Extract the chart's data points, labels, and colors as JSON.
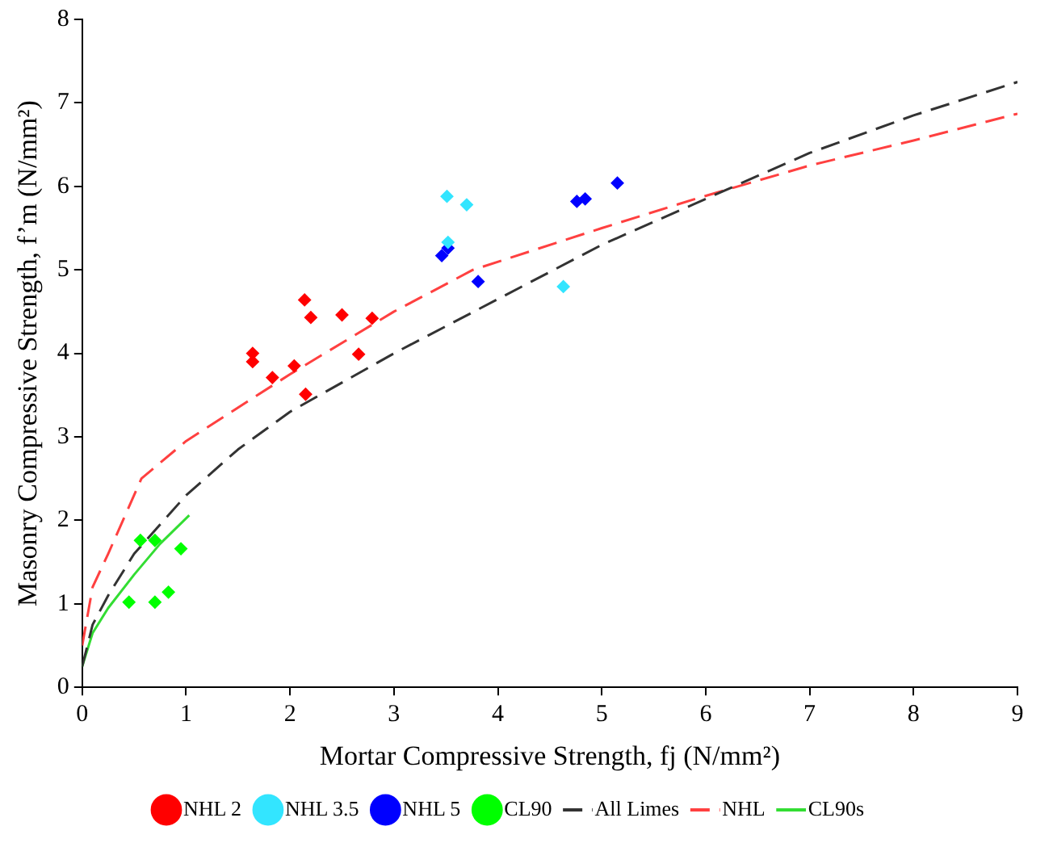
{
  "chart_data": {
    "type": "scatter",
    "xlabel": "Mortar Compressive Strength, fj (N/mm²)",
    "ylabel": "Masonry Compressive Strength, f’m (N/mm²)",
    "xlim": [
      0,
      9
    ],
    "ylim": [
      0,
      8
    ],
    "xticks": [
      0,
      1,
      2,
      3,
      4,
      5,
      6,
      7,
      8,
      9
    ],
    "yticks": [
      0,
      1,
      2,
      3,
      4,
      5,
      6,
      7,
      8
    ],
    "grid": false,
    "legend": "bottom",
    "marker": "diamond",
    "series": [
      {
        "name": "NHL 2",
        "color": "#ff0000",
        "x": [
          1.64,
          1.64,
          1.83,
          2.04,
          2.14,
          2.2,
          2.15,
          2.5,
          2.66,
          2.79
        ],
        "values": [
          4.0,
          3.9,
          3.71,
          3.85,
          4.64,
          4.43,
          3.51,
          4.46,
          3.99,
          4.42
        ]
      },
      {
        "name": "NHL 3.5",
        "color": "#33e5ff",
        "x": [
          3.51,
          3.7,
          3.52,
          4.63
        ],
        "values": [
          5.88,
          5.78,
          5.33,
          4.8
        ]
      },
      {
        "name": "NHL 5",
        "color": "#0000ff",
        "x": [
          3.46,
          3.52,
          3.81,
          4.76,
          4.84,
          5.15
        ],
        "values": [
          5.17,
          5.26,
          4.86,
          5.82,
          5.85,
          6.04
        ]
      },
      {
        "name": "CL90",
        "color": "#00ff00",
        "x": [
          0.45,
          0.7,
          0.83,
          0.56,
          0.7,
          0.95
        ],
        "values": [
          1.02,
          1.02,
          1.14,
          1.76,
          1.76,
          1.66
        ]
      },
      {
        "name": "All Limes",
        "type": "line",
        "color": "#333333",
        "line_style": "dashed",
        "marker": "none",
        "x": [
          0,
          0.1,
          0.25,
          0.5,
          1,
          1.5,
          2,
          3,
          4,
          5,
          6,
          7,
          8,
          9
        ],
        "values": [
          0.25,
          0.75,
          1.1,
          1.6,
          2.3,
          2.85,
          3.3,
          4.0,
          4.65,
          5.3,
          5.85,
          6.4,
          6.85,
          7.25
        ]
      },
      {
        "name": "NHL",
        "type": "line",
        "color": "#ff4040",
        "line_style": "dashed",
        "marker": "none",
        "x": [
          0,
          0.1,
          0.25,
          0.57,
          1,
          2,
          3,
          3.76,
          5,
          5.9,
          7,
          8,
          9
        ],
        "values": [
          0.5,
          1.2,
          1.6,
          2.5,
          2.95,
          3.75,
          4.5,
          5.0,
          5.5,
          5.85,
          6.25,
          6.55,
          6.87
        ]
      },
      {
        "name": "CL90s",
        "type": "line",
        "color": "#33dd33",
        "line_style": "solid",
        "marker": "none",
        "x": [
          0,
          0.1,
          0.25,
          0.5,
          0.75,
          1.03
        ],
        "values": [
          0.25,
          0.65,
          0.95,
          1.35,
          1.72,
          2.06
        ]
      }
    ]
  }
}
